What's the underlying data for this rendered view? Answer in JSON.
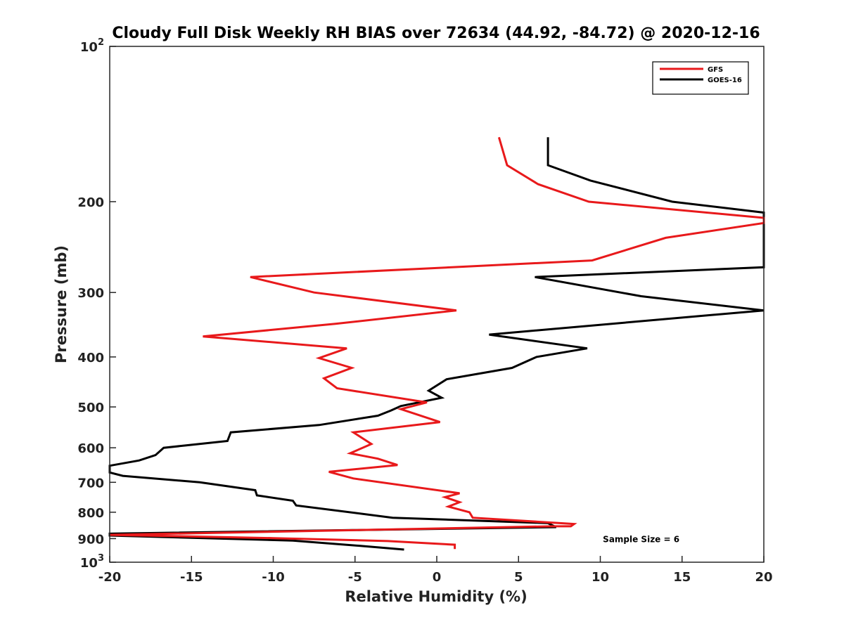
{
  "chart_data": {
    "type": "line",
    "title": "Cloudy Full Disk Weekly RH BIAS over 72634 (44.92, -84.72) @ 2020-12-16",
    "xlabel": "Relative Humidity (%)",
    "ylabel": "Pressure (mb)",
    "xlim": [
      -20,
      20
    ],
    "ylim": [
      100,
      1000
    ],
    "y_scale": "log",
    "y_reversed": true,
    "grid": false,
    "legend_position": "top-right",
    "x_ticks": [
      -20,
      -15,
      -10,
      -5,
      0,
      5,
      10,
      15,
      20
    ],
    "x_tick_labels": [
      "-20",
      "-15",
      "-10",
      "-5",
      "0",
      "5",
      "10",
      "15",
      "20"
    ],
    "y_ticks": [
      100,
      200,
      300,
      400,
      500,
      600,
      700,
      800,
      900,
      1000
    ],
    "y_tick_labels": [
      {
        "base": "10",
        "exp": "2"
      },
      {
        "base": "200",
        "exp": ""
      },
      {
        "base": "300",
        "exp": ""
      },
      {
        "base": "400",
        "exp": ""
      },
      {
        "base": "500",
        "exp": ""
      },
      {
        "base": "600",
        "exp": ""
      },
      {
        "base": "700",
        "exp": ""
      },
      {
        "base": "800",
        "exp": ""
      },
      {
        "base": "900",
        "exp": ""
      },
      {
        "base": "10",
        "exp": "3"
      }
    ],
    "series": [
      {
        "name": "GFS",
        "color": "#e8191b",
        "points": [
          {
            "x": 3.8,
            "y": 150
          },
          {
            "x": 4.3,
            "y": 170
          },
          {
            "x": 6.2,
            "y": 185
          },
          {
            "x": 9.3,
            "y": 200
          },
          {
            "x": 20.0,
            "y": 215
          },
          {
            "x": 20.0,
            "y": 220
          },
          {
            "x": 14.0,
            "y": 235
          },
          {
            "x": 9.5,
            "y": 260
          },
          {
            "x": -11.4,
            "y": 280
          },
          {
            "x": -7.5,
            "y": 300
          },
          {
            "x": 1.2,
            "y": 325
          },
          {
            "x": -6.2,
            "y": 345
          },
          {
            "x": -14.3,
            "y": 365
          },
          {
            "x": -5.5,
            "y": 385
          },
          {
            "x": -7.2,
            "y": 402
          },
          {
            "x": -5.2,
            "y": 420
          },
          {
            "x": -6.9,
            "y": 440
          },
          {
            "x": -6.1,
            "y": 460
          },
          {
            "x": -0.6,
            "y": 490
          },
          {
            "x": -2.2,
            "y": 505
          },
          {
            "x": 0.2,
            "y": 535
          },
          {
            "x": -5.1,
            "y": 560
          },
          {
            "x": -4.0,
            "y": 590
          },
          {
            "x": -5.3,
            "y": 615
          },
          {
            "x": -3.6,
            "y": 630
          },
          {
            "x": -2.4,
            "y": 648
          },
          {
            "x": -6.6,
            "y": 668
          },
          {
            "x": -5.1,
            "y": 688
          },
          {
            "x": 1.4,
            "y": 735
          },
          {
            "x": 0.5,
            "y": 748
          },
          {
            "x": 1.4,
            "y": 765
          },
          {
            "x": 0.7,
            "y": 780
          },
          {
            "x": 2.0,
            "y": 800
          },
          {
            "x": 2.2,
            "y": 820
          },
          {
            "x": 8.4,
            "y": 843
          },
          {
            "x": 8.2,
            "y": 852
          },
          {
            "x": 7.0,
            "y": 852
          },
          {
            "x": -20.0,
            "y": 885
          },
          {
            "x": -10.0,
            "y": 898
          },
          {
            "x": -3.0,
            "y": 910
          },
          {
            "x": 1.1,
            "y": 925
          },
          {
            "x": 1.1,
            "y": 943
          }
        ]
      },
      {
        "name": "GOES-16",
        "color": "#000000",
        "points": [
          {
            "x": 6.8,
            "y": 150
          },
          {
            "x": 6.8,
            "y": 170
          },
          {
            "x": 9.4,
            "y": 182
          },
          {
            "x": 14.4,
            "y": 200
          },
          {
            "x": 20.0,
            "y": 210
          },
          {
            "x": 20.0,
            "y": 268
          },
          {
            "x": 6.0,
            "y": 280
          },
          {
            "x": 12.5,
            "y": 305
          },
          {
            "x": 20.0,
            "y": 325
          },
          {
            "x": 3.2,
            "y": 362
          },
          {
            "x": 9.2,
            "y": 385
          },
          {
            "x": 6.1,
            "y": 400
          },
          {
            "x": 4.6,
            "y": 420
          },
          {
            "x": 0.6,
            "y": 442
          },
          {
            "x": -0.5,
            "y": 465
          },
          {
            "x": 0.3,
            "y": 480
          },
          {
            "x": -2.2,
            "y": 498
          },
          {
            "x": -2.8,
            "y": 508
          },
          {
            "x": -3.6,
            "y": 520
          },
          {
            "x": -7.2,
            "y": 542
          },
          {
            "x": -12.6,
            "y": 560
          },
          {
            "x": -12.8,
            "y": 582
          },
          {
            "x": -16.7,
            "y": 600
          },
          {
            "x": -17.2,
            "y": 620
          },
          {
            "x": -18.2,
            "y": 635
          },
          {
            "x": -20.0,
            "y": 650
          },
          {
            "x": -20.0,
            "y": 670
          },
          {
            "x": -19.2,
            "y": 680
          },
          {
            "x": -14.5,
            "y": 700
          },
          {
            "x": -11.1,
            "y": 725
          },
          {
            "x": -11.0,
            "y": 742
          },
          {
            "x": -8.8,
            "y": 760
          },
          {
            "x": -8.6,
            "y": 776
          },
          {
            "x": -2.7,
            "y": 820
          },
          {
            "x": 6.8,
            "y": 840
          },
          {
            "x": 7.3,
            "y": 855
          },
          {
            "x": -20.0,
            "y": 880
          },
          {
            "x": -20.0,
            "y": 888
          },
          {
            "x": -8.8,
            "y": 908
          },
          {
            "x": -4.6,
            "y": 930
          },
          {
            "x": -2.0,
            "y": 945
          }
        ]
      }
    ],
    "annotations": [
      {
        "text": "Sample Size = 6",
        "x": 12.5,
        "y": 900
      }
    ]
  }
}
